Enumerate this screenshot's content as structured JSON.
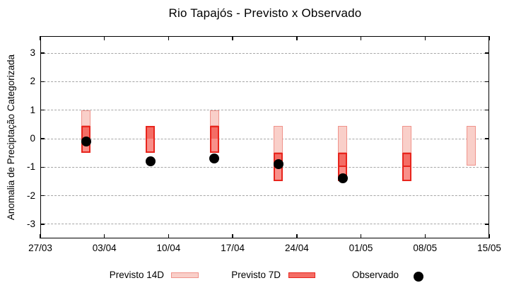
{
  "chart_data": {
    "type": "candlestick-forecast",
    "title": "Rio Tapajós - Previsto x Observado",
    "ylabel": "Anomalia de Preciptação Categorizada",
    "xlabel": "",
    "x_tick_labels": [
      "27/03",
      "03/04",
      "10/04",
      "17/04",
      "24/04",
      "01/05",
      "08/05",
      "15/05"
    ],
    "x_tick_days": [
      0,
      7,
      14,
      21,
      28,
      35,
      42,
      49
    ],
    "xlim_days": [
      0,
      49
    ],
    "y_tick_labels": [
      "3",
      "2",
      "1",
      "0",
      "-1",
      "-2",
      "-3"
    ],
    "y_ticks": [
      3,
      2,
      1,
      0,
      -1,
      -2,
      -3
    ],
    "ylim": [
      -3.5,
      3.6
    ],
    "grid": "horizontal-dashed",
    "legend_position": "below",
    "legend": [
      {
        "label": "Previsto 14D",
        "swatch": "light-box"
      },
      {
        "label": "Previsto 7D",
        "swatch": "red-box"
      },
      {
        "label": "Observado",
        "swatch": "black-dot"
      }
    ],
    "series": {
      "previsto_14d": [
        {
          "date": "01/04",
          "day": 5,
          "low": 0.45,
          "high": 1.0
        },
        {
          "date": "15/04",
          "day": 19,
          "low": 0.45,
          "high": 1.0
        },
        {
          "date": "22/04",
          "day": 26,
          "low": -0.5,
          "high": 0.45
        },
        {
          "date": "29/04",
          "day": 33,
          "low": -0.5,
          "high": 0.45
        },
        {
          "date": "06/05",
          "day": 40,
          "low": -0.5,
          "high": 0.45
        },
        {
          "date": "13/05",
          "day": 47,
          "low": -0.95,
          "high": 0.45
        }
      ],
      "previsto_7d": [
        {
          "date": "01/04",
          "day": 5,
          "low": -0.5,
          "high": 0.45,
          "mid": 0,
          "midline": false
        },
        {
          "date": "08/04",
          "day": 12,
          "low": -0.5,
          "high": 0.45,
          "mid": 0,
          "midline": false
        },
        {
          "date": "15/04",
          "day": 19,
          "low": -0.5,
          "high": 0.45,
          "mid": 0,
          "midline": false
        },
        {
          "date": "22/04",
          "day": 26,
          "low": -1.5,
          "high": -0.5,
          "mid": -1,
          "midline": true
        },
        {
          "date": "29/04",
          "day": 33,
          "low": -1.5,
          "high": -0.5,
          "mid": -1,
          "midline": true
        },
        {
          "date": "06/05",
          "day": 40,
          "low": -1.5,
          "high": -0.5,
          "mid": -1,
          "midline": true
        }
      ],
      "observado": [
        {
          "date": "01/04",
          "day": 5,
          "value": -0.1
        },
        {
          "date": "08/04",
          "day": 12,
          "value": -0.8
        },
        {
          "date": "15/04",
          "day": 19,
          "value": -0.7
        },
        {
          "date": "22/04",
          "day": 26,
          "value": -0.9
        },
        {
          "date": "29/04",
          "day": 33,
          "value": -1.4
        }
      ]
    },
    "colors": {
      "light_fill": "#f9cfc9",
      "light_border": "#f0938b",
      "outer_fill": "#f8908a",
      "inner_fill": "#f46d65",
      "box_border": "#e8251d",
      "dot": "#000000",
      "grid": "#a6a6a6",
      "frame": "#000000",
      "text": "#000000"
    }
  }
}
